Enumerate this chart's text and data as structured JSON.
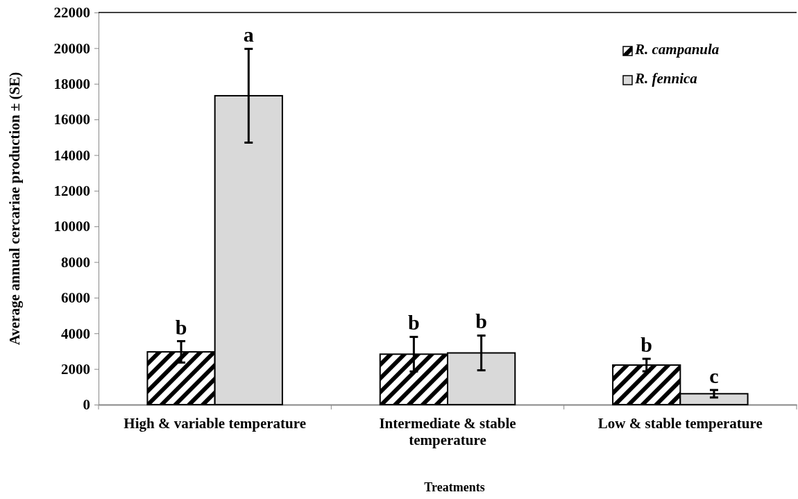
{
  "chart_data": {
    "type": "bar",
    "xlabel": "Treatments",
    "ylabel": "Average  annual cercariae production ± (SE)",
    "categories": [
      "High & variable temperature",
      "Intermediate & stable temperature",
      "Low & stable temperature"
    ],
    "series": [
      {
        "name": "R. campanula",
        "color": "#000000",
        "values": [
          2960,
          2830,
          2220
        ],
        "errors": [
          600,
          970,
          350
        ],
        "value_labels": [
          "b",
          "b",
          "b"
        ]
      },
      {
        "name": "R. fennica",
        "color": "#d9d9d9",
        "values": [
          17330,
          2900,
          610
        ],
        "errors": [
          2630,
          975,
          210
        ],
        "value_labels": [
          "a",
          "b",
          "c"
        ]
      }
    ],
    "ylim": [
      0,
      22000
    ],
    "yticks": [
      0,
      2000,
      4000,
      6000,
      8000,
      10000,
      12000,
      14000,
      16000,
      18000,
      20000,
      22000
    ],
    "grid": false,
    "legend": "top right"
  }
}
